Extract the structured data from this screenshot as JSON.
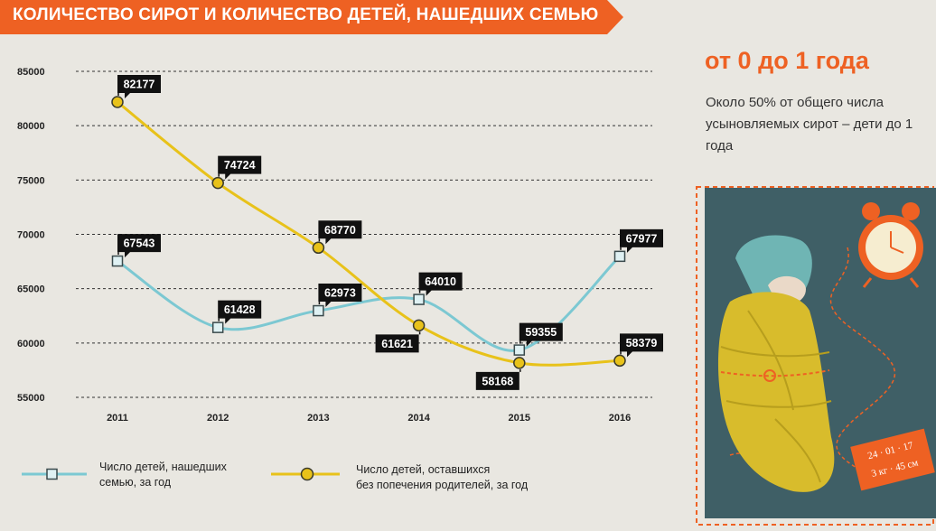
{
  "header": {
    "title": "КОЛИЧЕСТВО СИРОТ И КОЛИЧЕСТВО ДЕТЕЙ, НАШЕДШИХ СЕМЬЮ"
  },
  "colors": {
    "orange": "#ee6123",
    "blue_series": "#7cc8d2",
    "yellow_series": "#e8c21a",
    "label_bg": "#111111",
    "background": "#e9e7e1"
  },
  "chart_data": {
    "type": "line",
    "categories": [
      "2011",
      "2012",
      "2013",
      "2014",
      "2015",
      "2016"
    ],
    "yticks": [
      "55000",
      "60000",
      "65000",
      "70000",
      "75000",
      "80000",
      "85000"
    ],
    "ylim": [
      55000,
      85000
    ],
    "grid": true,
    "legend_position": "bottom",
    "series": [
      {
        "name": "Число детей, нашедших семью, за год",
        "legend_lines": [
          "Число детей, нашедших",
          "семью, за год"
        ],
        "marker": "square",
        "color": "#7cc8d2",
        "values": [
          67543,
          61428,
          62973,
          64010,
          59355,
          67977
        ]
      },
      {
        "name": "Число детей, оставшихся без попечения родителей, за год",
        "legend_lines": [
          "Число детей, оставшихся",
          "без попечения родителей, за год"
        ],
        "marker": "circle",
        "color": "#e8c21a",
        "values": [
          82177,
          74724,
          68770,
          61621,
          58168,
          58379
        ]
      }
    ],
    "labels": {
      "blue": [
        "67543",
        "61428",
        "62973",
        "64010",
        "59355",
        "67977"
      ],
      "yellow": [
        "82177",
        "74724",
        "68770",
        "61621",
        "58168",
        "58379"
      ]
    }
  },
  "side": {
    "heading": "от 0 до 1 года",
    "text": "Около 50% от общего числа усыновляемых сирот – дети до 1 года"
  },
  "illustration": {
    "tag_date": "24 · 01 · 17",
    "tag_weight": "3 кг · 45 см",
    "icon": "baby-alarm-clock-icon"
  }
}
